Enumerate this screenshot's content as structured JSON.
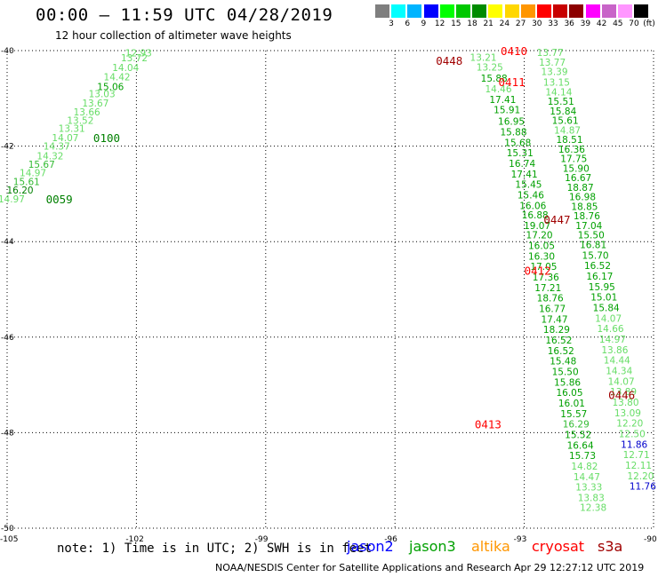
{
  "header": {
    "title": "00:00 – 11:59 UTC 04/28/2019",
    "subtitle": "12 hour collection of altimeter wave heights"
  },
  "legend": {
    "unit": "(ft)",
    "bins": [
      {
        "label": "3",
        "color": "#7f7f7f"
      },
      {
        "label": "6",
        "color": "#00ffff"
      },
      {
        "label": "9",
        "color": "#00b4ff"
      },
      {
        "label": "12",
        "color": "#0000ff"
      },
      {
        "label": "15",
        "color": "#00ff00"
      },
      {
        "label": "18",
        "color": "#00c800"
      },
      {
        "label": "21",
        "color": "#008c00"
      },
      {
        "label": "24",
        "color": "#ffff00"
      },
      {
        "label": "27",
        "color": "#ffd700"
      },
      {
        "label": "30",
        "color": "#ff9600"
      },
      {
        "label": "33",
        "color": "#ff0000"
      },
      {
        "label": "36",
        "color": "#c80000"
      },
      {
        "label": "39",
        "color": "#8c0000"
      },
      {
        "label": "42",
        "color": "#ff00ff"
      },
      {
        "label": "45",
        "color": "#c864c8"
      },
      {
        "label": "70",
        "color": "#ff96ff"
      },
      {
        "label": "",
        "color": "#000000"
      }
    ]
  },
  "axes": {
    "lat_labels": [
      "-40",
      "-42",
      "-44",
      "-46",
      "-48",
      "-50"
    ],
    "lon_labels": [
      "-105",
      "-102",
      "-99",
      "-96",
      "-93",
      "-90"
    ]
  },
  "colors": {
    "light": "#66dd66",
    "mid": "#33bb33",
    "green": "#00a000",
    "dark": "#008000",
    "red": "#ff0000",
    "darkred": "#a00000",
    "blue": "#0000cc"
  },
  "tracks": {
    "track1": {
      "color_key": "light",
      "points": [
        {
          "lon": -101.95,
          "lat": -40.05,
          "v": "12.93",
          "c": "light"
        },
        {
          "lon": -102.05,
          "lat": -40.15,
          "v": "13.72",
          "c": "light"
        },
        {
          "lon": -102.25,
          "lat": -40.35,
          "v": "14.04",
          "c": "light"
        },
        {
          "lon": -102.45,
          "lat": -40.55,
          "v": "14.42",
          "c": "light"
        },
        {
          "lon": -102.6,
          "lat": -40.75,
          "v": "15.06",
          "c": "green"
        },
        {
          "lon": -102.8,
          "lat": -40.9,
          "v": "13.03",
          "c": "light"
        },
        {
          "lon": -102.95,
          "lat": -41.1,
          "v": "13.67",
          "c": "light"
        },
        {
          "lon": -103.15,
          "lat": -41.28,
          "v": "13.66",
          "c": "light"
        },
        {
          "lon": -103.3,
          "lat": -41.46,
          "v": "13.52",
          "c": "light"
        },
        {
          "lon": -103.5,
          "lat": -41.63,
          "v": "13.31",
          "c": "light"
        },
        {
          "lon": -103.65,
          "lat": -41.82,
          "v": "14.07",
          "c": "light"
        },
        {
          "lon": -103.85,
          "lat": -42.0,
          "v": "14.37",
          "c": "light"
        },
        {
          "lon": -104.0,
          "lat": -42.2,
          "v": "14.32",
          "c": "light"
        },
        {
          "lon": -104.2,
          "lat": -42.38,
          "v": "15.67",
          "c": "mid"
        },
        {
          "lon": -104.4,
          "lat": -42.56,
          "v": "14.97",
          "c": "light"
        },
        {
          "lon": -104.55,
          "lat": -42.74,
          "v": "15.61",
          "c": "mid"
        },
        {
          "lon": -104.7,
          "lat": -42.92,
          "v": "16.20",
          "c": "dark"
        },
        {
          "lon": -104.9,
          "lat": -43.1,
          "v": "14.97",
          "c": "light"
        }
      ]
    },
    "track2": {
      "points": [
        {
          "lon": -93.95,
          "lat": -40.14,
          "v": "13.21",
          "c": "light"
        },
        {
          "lon": -93.8,
          "lat": -40.34,
          "v": "13.25",
          "c": "light"
        },
        {
          "lon": -93.7,
          "lat": -40.58,
          "v": "15.88",
          "c": "green"
        },
        {
          "lon": -93.6,
          "lat": -40.8,
          "v": "14.46",
          "c": "light"
        },
        {
          "lon": -93.5,
          "lat": -41.02,
          "v": "17.41",
          "c": "green"
        },
        {
          "lon": -93.4,
          "lat": -41.24,
          "v": "15.91",
          "c": "green"
        },
        {
          "lon": -93.3,
          "lat": -41.48,
          "v": "16.95",
          "c": "green"
        },
        {
          "lon": -93.25,
          "lat": -41.7,
          "v": "15.88",
          "c": "green"
        },
        {
          "lon": -93.15,
          "lat": -41.92,
          "v": "15.68",
          "c": "green"
        },
        {
          "lon": -93.1,
          "lat": -42.14,
          "v": "15.31",
          "c": "green"
        },
        {
          "lon": -93.05,
          "lat": -42.36,
          "v": "16.74",
          "c": "green"
        },
        {
          "lon": -93.0,
          "lat": -42.58,
          "v": "17.41",
          "c": "green"
        },
        {
          "lon": -92.9,
          "lat": -42.8,
          "v": "15.45",
          "c": "green"
        },
        {
          "lon": -92.85,
          "lat": -43.02,
          "v": "15.46",
          "c": "green"
        },
        {
          "lon": -92.8,
          "lat": -43.24,
          "v": "16.06",
          "c": "green"
        },
        {
          "lon": -92.75,
          "lat": -43.44,
          "v": "16.88",
          "c": "green"
        },
        {
          "lon": -92.7,
          "lat": -43.66,
          "v": "19.07",
          "c": "green"
        },
        {
          "lon": -92.65,
          "lat": -43.86,
          "v": "17.20",
          "c": "green"
        },
        {
          "lon": -92.6,
          "lat": -44.08,
          "v": "16.05",
          "c": "green"
        },
        {
          "lon": -92.6,
          "lat": -44.3,
          "v": "16.30",
          "c": "green"
        },
        {
          "lon": -92.55,
          "lat": -44.52,
          "v": "17.05",
          "c": "green"
        },
        {
          "lon": -92.5,
          "lat": -44.74,
          "v": "17.36",
          "c": "green"
        },
        {
          "lon": -92.45,
          "lat": -44.96,
          "v": "17.21",
          "c": "green"
        },
        {
          "lon": -92.4,
          "lat": -45.18,
          "v": "18.76",
          "c": "green"
        },
        {
          "lon": -92.35,
          "lat": -45.4,
          "v": "16.77",
          "c": "green"
        },
        {
          "lon": -92.3,
          "lat": -45.62,
          "v": "17.47",
          "c": "green"
        },
        {
          "lon": -92.25,
          "lat": -45.84,
          "v": "18.29",
          "c": "green"
        },
        {
          "lon": -92.2,
          "lat": -46.06,
          "v": "16.52",
          "c": "green"
        },
        {
          "lon": -92.15,
          "lat": -46.28,
          "v": "16.52",
          "c": "green"
        },
        {
          "lon": -92.1,
          "lat": -46.5,
          "v": "15.48",
          "c": "green"
        },
        {
          "lon": -92.05,
          "lat": -46.72,
          "v": "15.50",
          "c": "green"
        },
        {
          "lon": -92.0,
          "lat": -46.94,
          "v": "15.86",
          "c": "green"
        },
        {
          "lon": -91.95,
          "lat": -47.16,
          "v": "16.05",
          "c": "green"
        },
        {
          "lon": -91.9,
          "lat": -47.38,
          "v": "16.01",
          "c": "green"
        },
        {
          "lon": -91.85,
          "lat": -47.6,
          "v": "15.57",
          "c": "green"
        },
        {
          "lon": -91.8,
          "lat": -47.82,
          "v": "16.29",
          "c": "mid"
        },
        {
          "lon": -91.75,
          "lat": -48.04,
          "v": "15.52",
          "c": "green"
        },
        {
          "lon": -91.7,
          "lat": -48.26,
          "v": "16.64",
          "c": "green"
        },
        {
          "lon": -91.65,
          "lat": -48.48,
          "v": "15.73",
          "c": "green"
        },
        {
          "lon": -91.6,
          "lat": -48.7,
          "v": "14.82",
          "c": "light"
        },
        {
          "lon": -91.55,
          "lat": -48.92,
          "v": "14.47",
          "c": "light"
        },
        {
          "lon": -91.5,
          "lat": -49.14,
          "v": "13.33",
          "c": "light"
        },
        {
          "lon": -91.45,
          "lat": -49.36,
          "v": "13.83",
          "c": "light"
        },
        {
          "lon": -91.4,
          "lat": -49.56,
          "v": "12.38",
          "c": "light"
        }
      ]
    },
    "track3": {
      "points": [
        {
          "lon": -92.4,
          "lat": -40.04,
          "v": "13.77",
          "c": "light"
        },
        {
          "lon": -92.35,
          "lat": -40.24,
          "v": "13.77",
          "c": "light"
        },
        {
          "lon": -92.3,
          "lat": -40.44,
          "v": "13.39",
          "c": "light"
        },
        {
          "lon": -92.25,
          "lat": -40.66,
          "v": "13.15",
          "c": "light"
        },
        {
          "lon": -92.2,
          "lat": -40.86,
          "v": "14.14",
          "c": "light"
        },
        {
          "lon": -92.15,
          "lat": -41.06,
          "v": "15.51",
          "c": "green"
        },
        {
          "lon": -92.1,
          "lat": -41.26,
          "v": "15.84",
          "c": "green"
        },
        {
          "lon": -92.05,
          "lat": -41.46,
          "v": "15.61",
          "c": "green"
        },
        {
          "lon": -92.0,
          "lat": -41.66,
          "v": "14.87",
          "c": "light"
        },
        {
          "lon": -91.95,
          "lat": -41.86,
          "v": "18.51",
          "c": "green"
        },
        {
          "lon": -91.9,
          "lat": -42.06,
          "v": "16.36",
          "c": "green"
        },
        {
          "lon": -91.85,
          "lat": -42.26,
          "v": "17.75",
          "c": "green"
        },
        {
          "lon": -91.8,
          "lat": -42.46,
          "v": "15.90",
          "c": "green"
        },
        {
          "lon": -91.75,
          "lat": -42.66,
          "v": "16.67",
          "c": "green"
        },
        {
          "lon": -91.7,
          "lat": -42.86,
          "v": "18.87",
          "c": "green"
        },
        {
          "lon": -91.65,
          "lat": -43.06,
          "v": "16.98",
          "c": "green"
        },
        {
          "lon": -91.6,
          "lat": -43.26,
          "v": "18.85",
          "c": "green"
        },
        {
          "lon": -91.55,
          "lat": -43.46,
          "v": "18.76",
          "c": "green"
        },
        {
          "lon": -91.5,
          "lat": -43.66,
          "v": "17.04",
          "c": "green"
        },
        {
          "lon": -91.45,
          "lat": -43.86,
          "v": "15.50",
          "c": "green"
        },
        {
          "lon": -91.4,
          "lat": -44.06,
          "v": "16.81",
          "c": "green"
        },
        {
          "lon": -91.35,
          "lat": -44.28,
          "v": "15.70",
          "c": "green"
        },
        {
          "lon": -91.3,
          "lat": -44.5,
          "v": "16.52",
          "c": "green"
        },
        {
          "lon": -91.25,
          "lat": -44.72,
          "v": "16.17",
          "c": "green"
        },
        {
          "lon": -91.2,
          "lat": -44.94,
          "v": "15.95",
          "c": "green"
        },
        {
          "lon": -91.15,
          "lat": -45.16,
          "v": "15.01",
          "c": "green"
        },
        {
          "lon": -91.1,
          "lat": -45.38,
          "v": "15.84",
          "c": "green"
        },
        {
          "lon": -91.05,
          "lat": -45.6,
          "v": "14.07",
          "c": "light"
        },
        {
          "lon": -91.0,
          "lat": -45.82,
          "v": "14.66",
          "c": "light"
        },
        {
          "lon": -90.95,
          "lat": -46.04,
          "v": "14.97",
          "c": "light"
        },
        {
          "lon": -90.9,
          "lat": -46.26,
          "v": "13.86",
          "c": "light"
        },
        {
          "lon": -90.85,
          "lat": -46.48,
          "v": "14.44",
          "c": "light"
        },
        {
          "lon": -90.8,
          "lat": -46.7,
          "v": "14.34",
          "c": "light"
        },
        {
          "lon": -90.75,
          "lat": -46.92,
          "v": "14.07",
          "c": "light"
        },
        {
          "lon": -90.7,
          "lat": -47.14,
          "v": "13.89",
          "c": "light"
        },
        {
          "lon": -90.65,
          "lat": -47.36,
          "v": "13.80",
          "c": "light"
        },
        {
          "lon": -90.6,
          "lat": -47.58,
          "v": "13.09",
          "c": "light"
        },
        {
          "lon": -90.55,
          "lat": -47.8,
          "v": "12.20",
          "c": "light"
        },
        {
          "lon": -90.5,
          "lat": -48.02,
          "v": "12.50",
          "c": "light"
        },
        {
          "lon": -90.45,
          "lat": -48.24,
          "v": "11.86",
          "c": "blue"
        },
        {
          "lon": -90.4,
          "lat": -48.46,
          "v": "12.71",
          "c": "light"
        },
        {
          "lon": -90.35,
          "lat": -48.68,
          "v": "12.11",
          "c": "light"
        },
        {
          "lon": -90.3,
          "lat": -48.9,
          "v": "12.20",
          "c": "light"
        },
        {
          "lon": -90.25,
          "lat": -49.12,
          "v": "11.76",
          "c": "blue"
        }
      ]
    }
  },
  "time_labels": [
    {
      "lon": -103.0,
      "lat": -41.82,
      "t": "0100",
      "c": "dark"
    },
    {
      "lon": -104.1,
      "lat": -43.1,
      "t": "0059",
      "c": "dark"
    },
    {
      "lon": -95.05,
      "lat": -40.2,
      "t": "0448",
      "c": "darkred"
    },
    {
      "lon": -93.55,
      "lat": -40.0,
      "t": "0410",
      "c": "red"
    },
    {
      "lon": -93.6,
      "lat": -40.65,
      "t": "0411",
      "c": "red"
    },
    {
      "lon": -92.55,
      "lat": -43.53,
      "t": "0447",
      "c": "darkred"
    },
    {
      "lon": -93.0,
      "lat": -44.6,
      "t": "0412",
      "c": "red"
    },
    {
      "lon": -91.05,
      "lat": -47.2,
      "t": "0446",
      "c": "darkred"
    },
    {
      "lon": -94.15,
      "lat": -47.82,
      "t": "0413",
      "c": "red"
    }
  ],
  "footer": {
    "note": "note: 1) Time is in UTC; 2) SWH is in feet",
    "satellites": [
      {
        "name": "jason2",
        "color": "#0000ff"
      },
      {
        "name": "jason3",
        "color": "#00a000"
      },
      {
        "name": "altika",
        "color": "#ff9600"
      },
      {
        "name": "cryosat",
        "color": "#ff0000"
      },
      {
        "name": "s3a",
        "color": "#a00000"
      }
    ],
    "credit": "NOAA/NESDIS Center for Satellite Applications and Research",
    "date": "Apr 29 12:27:12 UTC 2019"
  }
}
